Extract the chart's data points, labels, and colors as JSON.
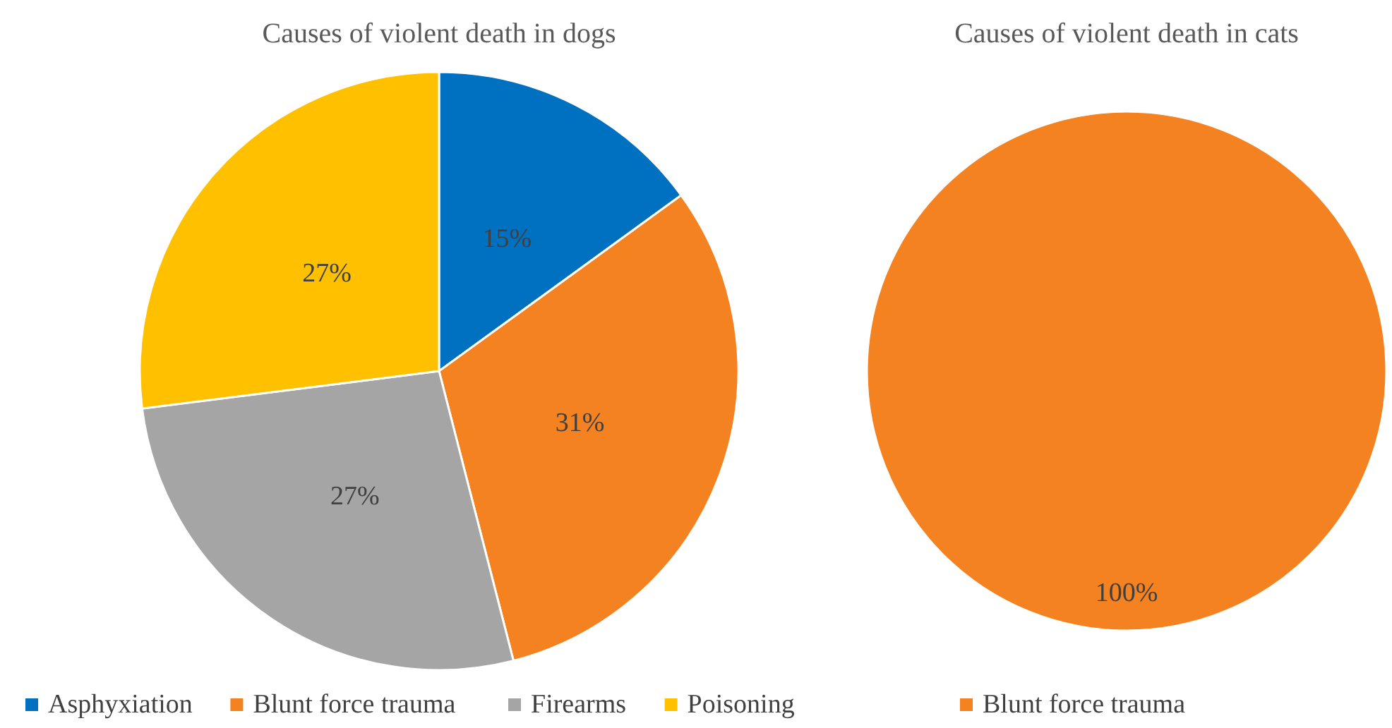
{
  "chart_data": [
    {
      "type": "pie",
      "title": "Causes of violent death in dogs",
      "categories": [
        "Asphyxiation",
        "Blunt force trauma",
        "Firearms",
        "Poisoning"
      ],
      "values": [
        15,
        31,
        27,
        27
      ],
      "colors": [
        "#0070c0",
        "#f58220",
        "#a5a5a5",
        "#ffc000"
      ],
      "value_labels": [
        "15%",
        "31%",
        "27%",
        "27%"
      ],
      "legend": "bottom"
    },
    {
      "type": "pie",
      "title": "Causes of violent death in cats",
      "categories": [
        "Blunt force trauma"
      ],
      "values": [
        100
      ],
      "colors": [
        "#f58220"
      ],
      "value_labels": [
        "100%"
      ],
      "legend": "bottom"
    }
  ]
}
